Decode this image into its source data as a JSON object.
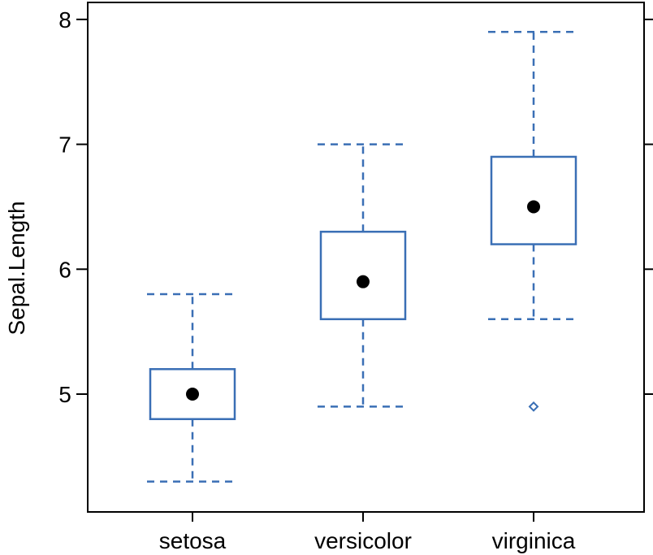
{
  "chart_data": {
    "type": "box",
    "title": "",
    "xlabel": "",
    "ylabel": "Sepal.Length",
    "ylim": [
      4.1,
      8.1
    ],
    "yticks": [
      5,
      6,
      7,
      8
    ],
    "ytick_labels": [
      "5",
      "6",
      "7",
      "8"
    ],
    "categories": [
      "setosa",
      "versicolor",
      "virginica"
    ],
    "series": [
      {
        "category": "setosa",
        "whisker_low": 4.3,
        "q1": 4.8,
        "median": 5.0,
        "q3": 5.2,
        "whisker_high": 5.8,
        "outliers": []
      },
      {
        "category": "versicolor",
        "whisker_low": 4.9,
        "q1": 5.6,
        "median": 5.9,
        "q3": 6.3,
        "whisker_high": 7.0,
        "outliers": []
      },
      {
        "category": "virginica",
        "whisker_low": 5.6,
        "q1": 6.2,
        "median": 6.5,
        "q3": 6.9,
        "whisker_high": 7.9,
        "outliers": [
          4.9
        ]
      }
    ],
    "grid": false,
    "colors": {
      "box": "#3a6fb5",
      "median_dot": "#000000",
      "frame": "#000000"
    }
  }
}
